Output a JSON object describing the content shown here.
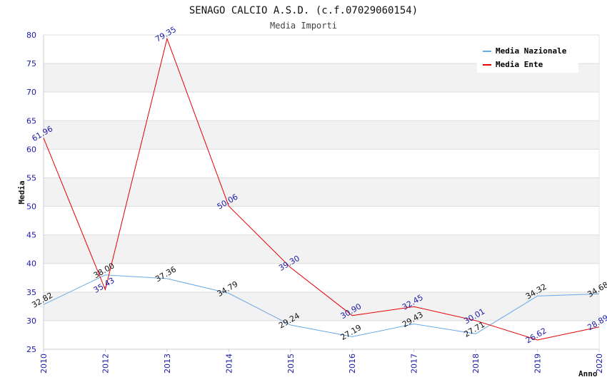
{
  "chart_data": {
    "type": "line",
    "title": "SENAGO CALCIO A.S.D. (c.f.07029060154)",
    "subtitle": "Media Importi",
    "xlabel": "Anno",
    "ylabel": "Media",
    "categories": [
      "2010",
      "2012",
      "2013",
      "2014",
      "2015",
      "2016",
      "2017",
      "2018",
      "2019",
      "2020"
    ],
    "ylim": [
      25,
      80
    ],
    "yticks": [
      25,
      30,
      35,
      40,
      45,
      50,
      55,
      60,
      65,
      70,
      75,
      80
    ],
    "legend_position": "top-right",
    "series": [
      {
        "name": "Media Nazionale",
        "color": "#6aa9e6",
        "values": [
          32.82,
          38.0,
          37.36,
          34.79,
          29.24,
          27.19,
          29.43,
          27.71,
          34.32,
          34.68
        ],
        "labels": [
          "32.82",
          "38.00",
          "37.36",
          "34.79",
          "29.24",
          "27.19",
          "29.43",
          "27.71",
          "34.32",
          "34.68"
        ]
      },
      {
        "name": "Media Ente",
        "color": "#e60000",
        "values": [
          61.96,
          35.43,
          79.35,
          50.06,
          39.3,
          30.9,
          32.45,
          30.01,
          26.62,
          28.89
        ],
        "labels": [
          "61.96",
          "35.43",
          "79.35",
          "50.06",
          "39.30",
          "30.90",
          "32.45",
          "30.01",
          "26.62",
          "28.89"
        ]
      }
    ]
  }
}
